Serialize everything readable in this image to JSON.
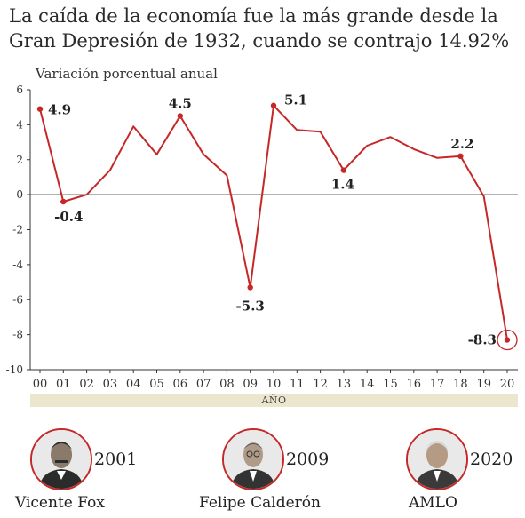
{
  "header": {
    "title": "La caída de la economía fue la más grande desde la Gran Depresión de 1932, cuando se contrajo 14.92%"
  },
  "chart_data": {
    "type": "line",
    "ylabel": "Variación porcentual anual",
    "xlabel": "AÑO",
    "x": [
      "00",
      "01",
      "02",
      "03",
      "04",
      "05",
      "06",
      "07",
      "08",
      "09",
      "10",
      "11",
      "12",
      "13",
      "14",
      "15",
      "16",
      "17",
      "18",
      "19",
      "20"
    ],
    "values": [
      4.9,
      -0.4,
      0.0,
      1.4,
      3.9,
      2.3,
      4.5,
      2.3,
      1.1,
      -5.3,
      5.1,
      3.7,
      3.6,
      1.4,
      2.8,
      3.3,
      2.6,
      2.1,
      2.2,
      -0.1,
      -8.3
    ],
    "ylim": [
      -10,
      6
    ],
    "yticks": [
      "6",
      "4",
      "2",
      "0",
      "-2",
      "-4",
      "-6",
      "-8",
      "-10"
    ],
    "data_labels": [
      {
        "index": 0,
        "text": "4.9"
      },
      {
        "index": 1,
        "text": "-0.4"
      },
      {
        "index": 6,
        "text": "4.5"
      },
      {
        "index": 9,
        "text": "-5.3"
      },
      {
        "index": 10,
        "text": "5.1"
      },
      {
        "index": 13,
        "text": "1.4"
      },
      {
        "index": 18,
        "text": "2.2"
      },
      {
        "index": 20,
        "text": "-8.3"
      }
    ],
    "line_color": "#c62828",
    "grid": false
  },
  "presidents": [
    {
      "name": "Vicente Fox",
      "year": "2001"
    },
    {
      "name": "Felipe Calderón",
      "year": "2009"
    },
    {
      "name": "AMLO",
      "year": "2020"
    }
  ]
}
